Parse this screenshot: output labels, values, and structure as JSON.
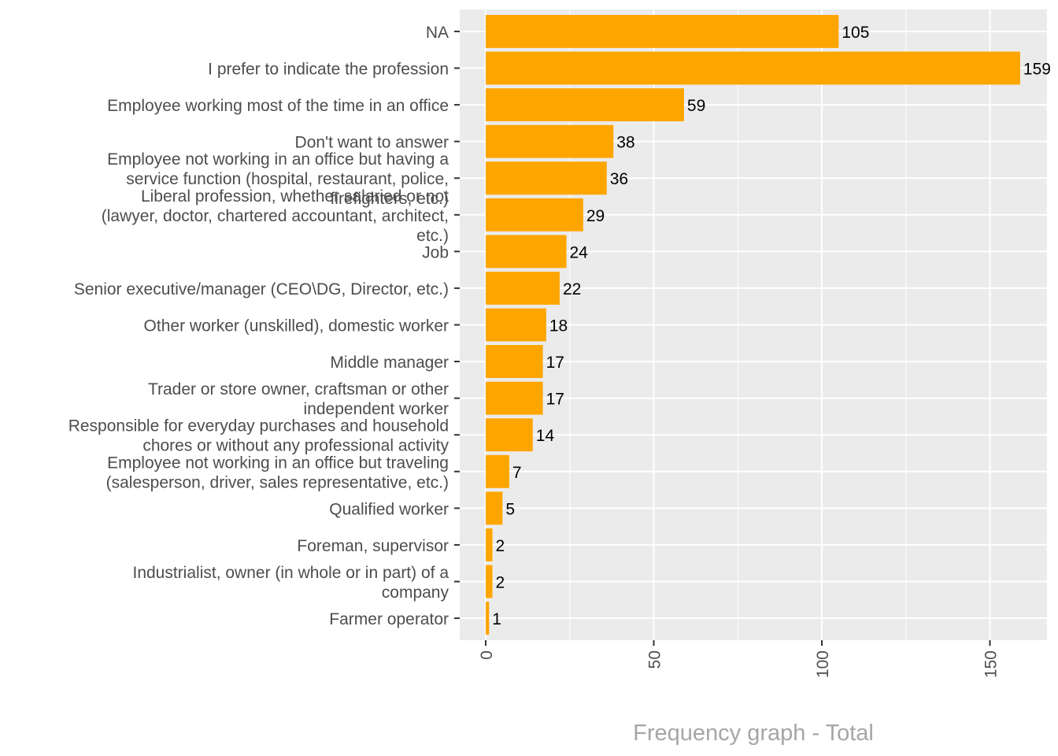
{
  "chart_data": {
    "type": "bar",
    "orientation": "horizontal",
    "categories": [
      [
        "NA"
      ],
      [
        "I prefer to indicate the profession"
      ],
      [
        "Employee working most of the time in an office"
      ],
      [
        "Don't want to answer"
      ],
      [
        "Employee not working in an office but having a",
        "service function (hospital, restaurant, police,",
        "firefighters, etc.)"
      ],
      [
        "Liberal profession, whether salaried or not",
        "(lawyer, doctor, chartered accountant, architect,",
        "etc.)"
      ],
      [
        "Job"
      ],
      [
        "Senior executive/manager (CEO\\DG, Director, etc.)"
      ],
      [
        "Other worker (unskilled), domestic worker"
      ],
      [
        "Middle manager"
      ],
      [
        "Trader or store owner, craftsman or other",
        "independent worker"
      ],
      [
        "Responsible for everyday purchases and household",
        "chores or without any professional activity"
      ],
      [
        "Employee not working in an office but traveling",
        "(salesperson, driver, sales representative, etc.)"
      ],
      [
        "Qualified worker"
      ],
      [
        "Foreman, supervisor"
      ],
      [
        "Industrialist, owner (in whole or in part) of a",
        "company"
      ],
      [
        "Farmer operator"
      ]
    ],
    "values": [
      105,
      159,
      59,
      38,
      36,
      29,
      24,
      22,
      18,
      17,
      17,
      14,
      7,
      5,
      2,
      2,
      1
    ],
    "data_labels": [
      "105",
      "159",
      "59",
      "38",
      "36",
      "29",
      "24",
      "22",
      "18",
      "17",
      "17",
      "14",
      "7",
      "5",
      "2",
      "2",
      "1"
    ],
    "xlim": [
      -7.8,
      166
    ],
    "x_ticks": [
      0,
      50,
      100,
      150
    ],
    "x_tick_labels": [
      "0",
      "50",
      "100",
      "150"
    ],
    "xlabel": "Frequency graph - Total",
    "ylabel": "",
    "title": "",
    "grid": true,
    "bar_color": "#FFA500",
    "panel_color": "#EBEBEB",
    "grid_color": "#FFFFFF"
  }
}
